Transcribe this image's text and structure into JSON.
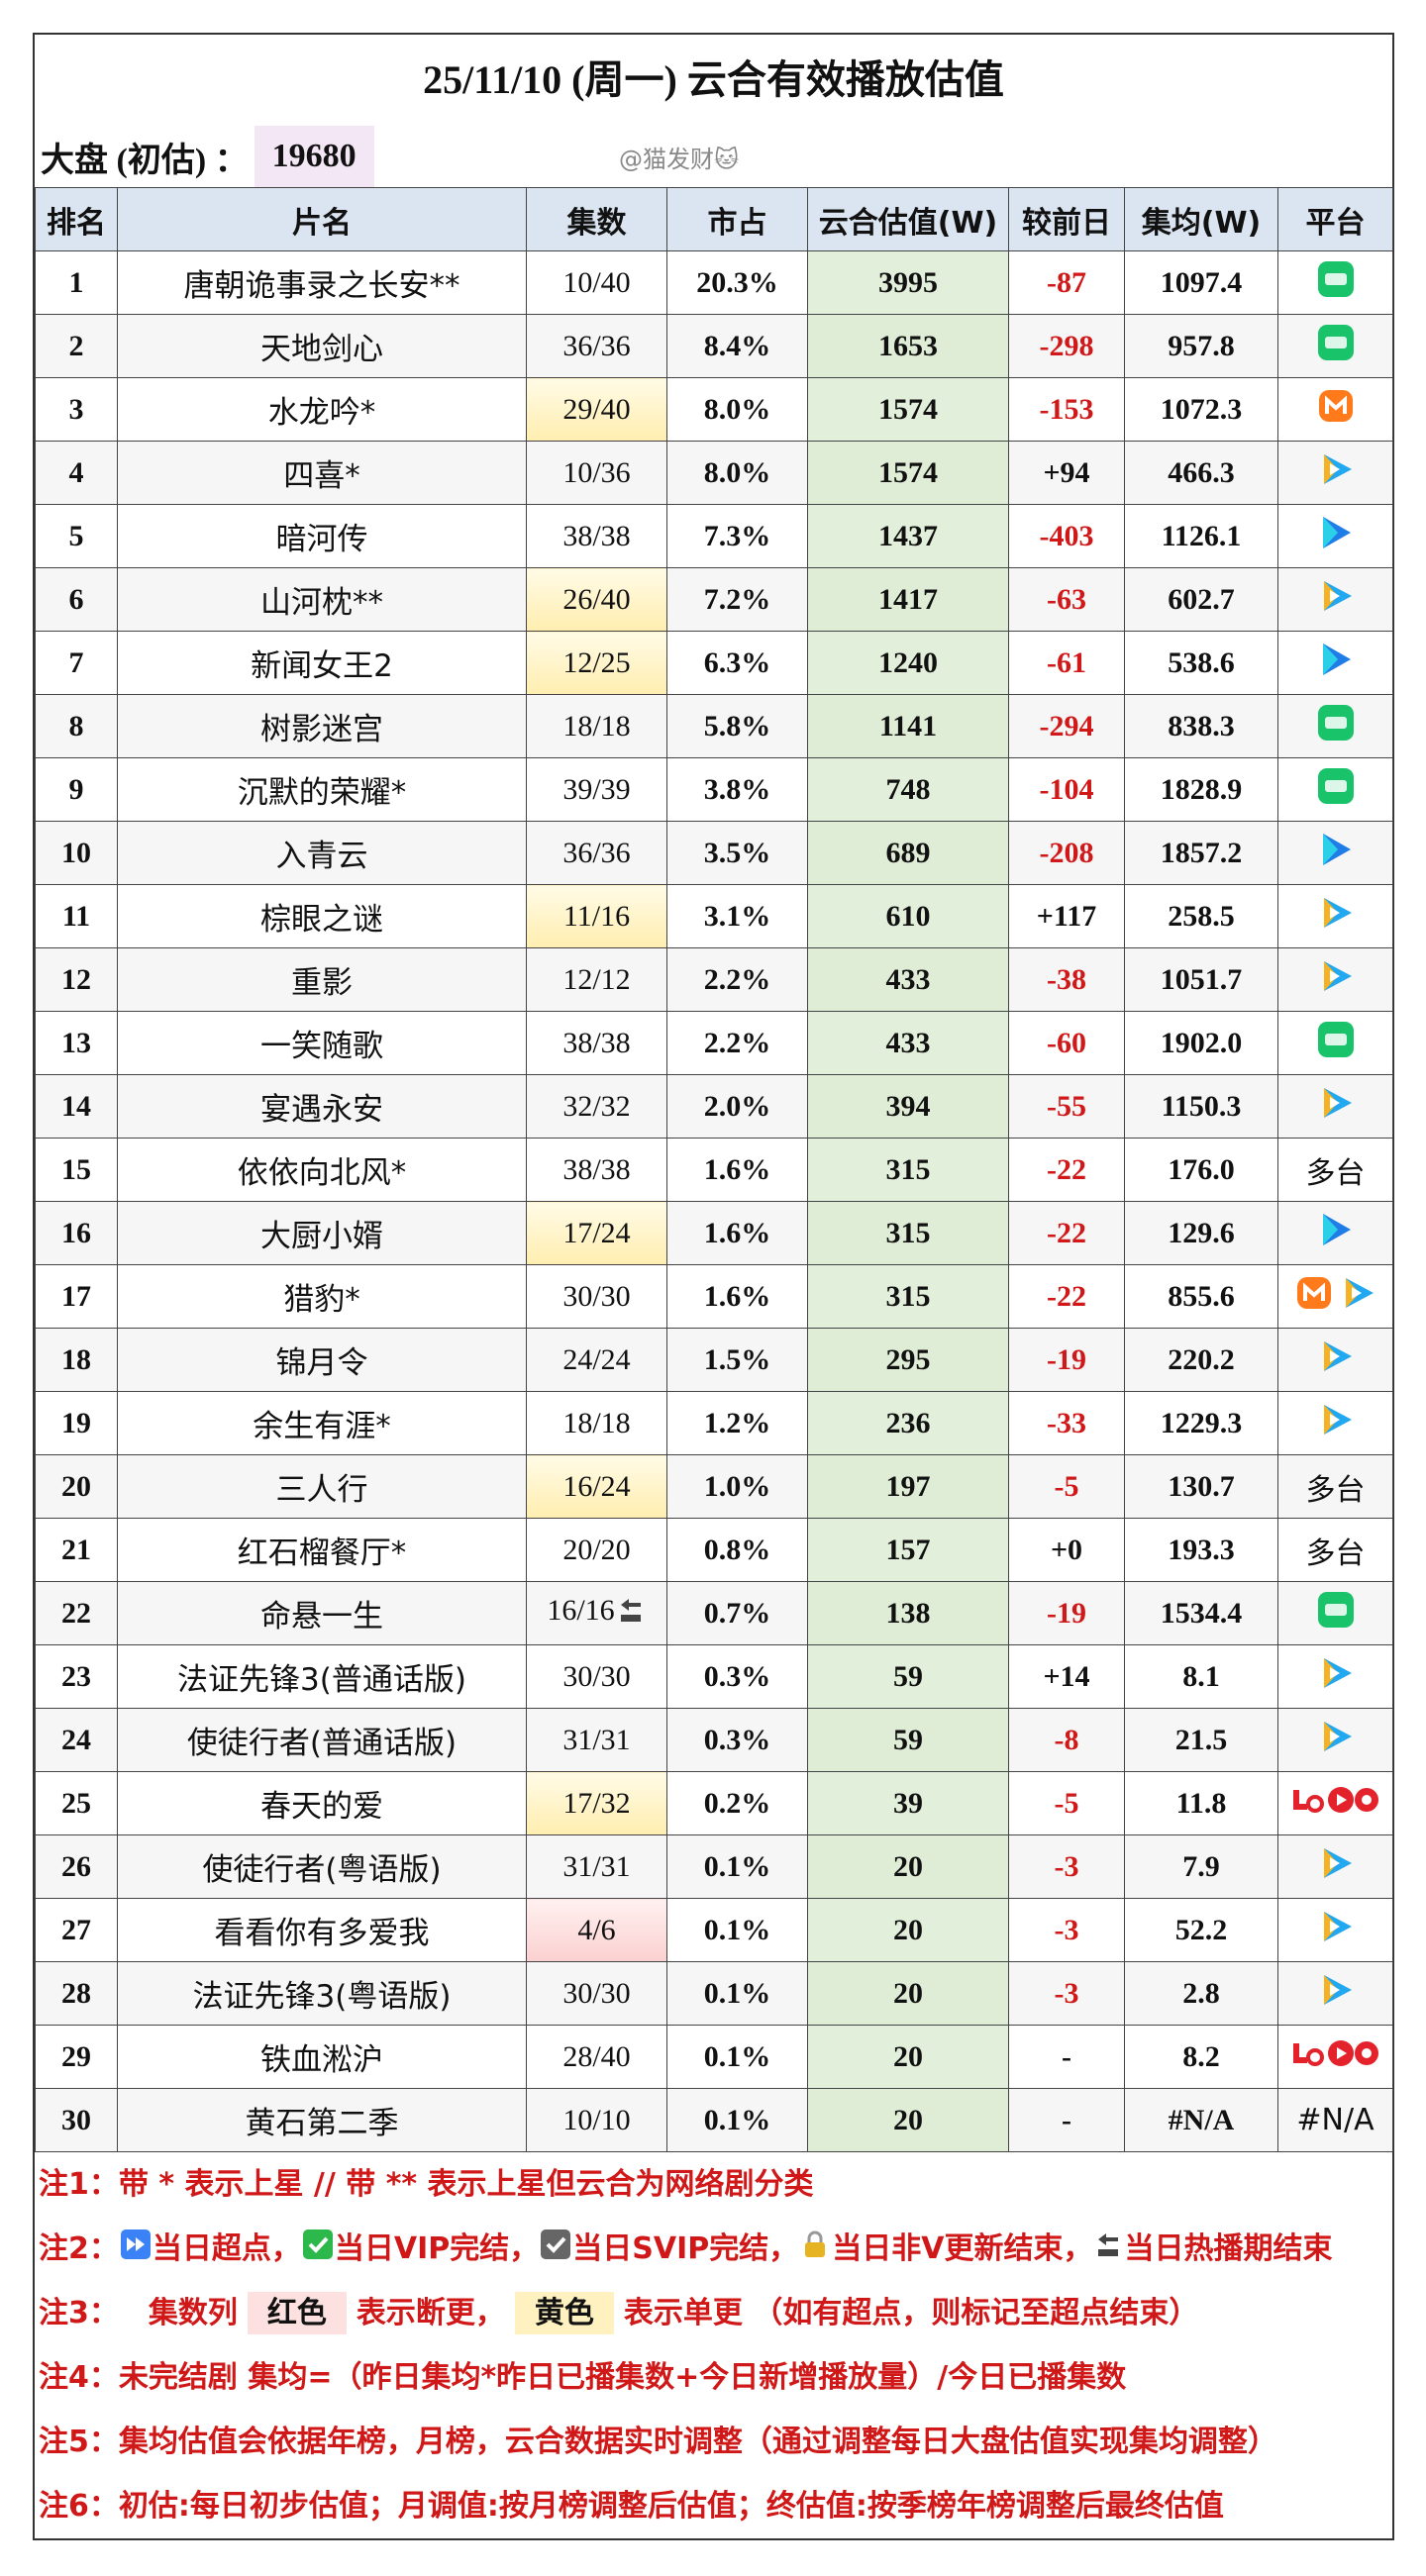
{
  "header": {
    "title": "25/11/10 (周一) 云合有效播放估值",
    "market_label": "大盘 (初估) ：",
    "market_value": "19680",
    "watermark": "@猫发财🐱"
  },
  "table": {
    "columns": [
      "排名",
      "片名",
      "集数",
      "市占",
      "云合估值(W)",
      "较前日",
      "集均(W)",
      "平台"
    ],
    "rows": [
      [
        "1",
        "唐朝诡事录之长安**",
        "10/40",
        "20.3%",
        "3995",
        "-87",
        "1097.4",
        ""
      ],
      [
        "2",
        "天地剑心",
        "36/36",
        "8.4%",
        "1653",
        "-298",
        "957.8",
        ""
      ],
      [
        "3",
        "水龙吟*",
        "29/40",
        "8.0%",
        "1574",
        "-153",
        "1072.3",
        ""
      ],
      [
        "4",
        "四喜*",
        "10/36",
        "8.0%",
        "1574",
        "+94",
        "466.3",
        ""
      ],
      [
        "5",
        "暗河传",
        "38/38",
        "7.3%",
        "1437",
        "-403",
        "1126.1",
        ""
      ],
      [
        "6",
        "山河枕**",
        "26/40",
        "7.2%",
        "1417",
        "-63",
        "602.7",
        ""
      ],
      [
        "7",
        "新闻女王2",
        "12/25",
        "6.3%",
        "1240",
        "-61",
        "538.6",
        ""
      ],
      [
        "8",
        "树影迷宫",
        "18/18",
        "5.8%",
        "1141",
        "-294",
        "838.3",
        ""
      ],
      [
        "9",
        "沉默的荣耀*",
        "39/39",
        "3.8%",
        "748",
        "-104",
        "1828.9",
        ""
      ],
      [
        "10",
        "入青云",
        "36/36",
        "3.5%",
        "689",
        "-208",
        "1857.2",
        ""
      ],
      [
        "11",
        "棕眼之谜",
        "11/16",
        "3.1%",
        "610",
        "+117",
        "258.5",
        ""
      ],
      [
        "12",
        "重影",
        "12/12",
        "2.2%",
        "433",
        "-38",
        "1051.7",
        ""
      ],
      [
        "13",
        "一笑随歌",
        "38/38",
        "2.2%",
        "433",
        "-60",
        "1902.0",
        ""
      ],
      [
        "14",
        "宴遇永安",
        "32/32",
        "2.0%",
        "394",
        "-55",
        "1150.3",
        ""
      ],
      [
        "15",
        "依依向北风*",
        "38/38",
        "1.6%",
        "315",
        "-22",
        "176.0",
        "多台"
      ],
      [
        "16",
        "大厨小婿",
        "17/24",
        "1.6%",
        "315",
        "-22",
        "129.6",
        ""
      ],
      [
        "17",
        "猎豹*",
        "30/30",
        "1.6%",
        "315",
        "-22",
        "855.6",
        ""
      ],
      [
        "18",
        "锦月令",
        "24/24",
        "1.5%",
        "295",
        "-19",
        "220.2",
        ""
      ],
      [
        "19",
        "余生有涯*",
        "18/18",
        "1.2%",
        "236",
        "-33",
        "1229.3",
        ""
      ],
      [
        "20",
        "三人行",
        "16/24",
        "1.0%",
        "197",
        "-5",
        "130.7",
        "多台"
      ],
      [
        "21",
        "红石榴餐厅*",
        "20/20",
        "0.8%",
        "157",
        "+0",
        "193.3",
        "多台"
      ],
      [
        "22",
        "命悬一生",
        "16/16",
        "0.7%",
        "138",
        "-19",
        "1534.4",
        ""
      ],
      [
        "23",
        "法证先锋3(普通话版)",
        "30/30",
        "0.3%",
        "59",
        "+14",
        "8.1",
        ""
      ],
      [
        "24",
        "使徒行者(普通话版)",
        "31/31",
        "0.3%",
        "59",
        "-8",
        "21.5",
        ""
      ],
      [
        "25",
        "春天的爱",
        "17/32",
        "0.2%",
        "39",
        "-5",
        "11.8",
        ""
      ],
      [
        "26",
        "使徒行者(粤语版)",
        "31/31",
        "0.1%",
        "20",
        "-3",
        "7.9",
        ""
      ],
      [
        "27",
        "看看你有多爱我",
        "4/6",
        "0.1%",
        "20",
        "-3",
        "52.2",
        ""
      ],
      [
        "28",
        "法证先锋3(粤语版)",
        "30/30",
        "0.1%",
        "20",
        "-3",
        "2.8",
        ""
      ],
      [
        "29",
        "铁血淞沪",
        "28/40",
        "0.1%",
        "20",
        "-",
        "8.2",
        ""
      ],
      [
        "30",
        "黄石第二季",
        "10/10",
        "0.1%",
        "20",
        "-",
        "#N/A",
        "#N/A"
      ]
    ]
  },
  "notes": [
    [
      "注1：带 * 表示上星 // 带 ** 表示上星但云合为网络剧分类"
    ],
    [
      "注2：",
      "当日超点，",
      "当日VIP完结，",
      "当日SVIP完结，",
      "当日非V更新结束，",
      "当日热播期结束"
    ],
    [
      "注3：",
      "集数列",
      "红色",
      "表示断更，",
      "黄色",
      "表示单更 （如有超点，则标记至超点结束）"
    ],
    [
      "注4：未完结剧 集均=（昨日集均*昨日已播集数+今日新增播放量）/今日已播集数"
    ],
    [
      "注5：集均估值会依据年榜，月榜，云合数据实时调整（通过调整每日大盘估值实现集均调整）"
    ],
    [
      "注6：初估:每日初步估值；月调值:按月榜调整后估值；终估值:按季榜年榜调整后最终估值"
    ]
  ]
}
